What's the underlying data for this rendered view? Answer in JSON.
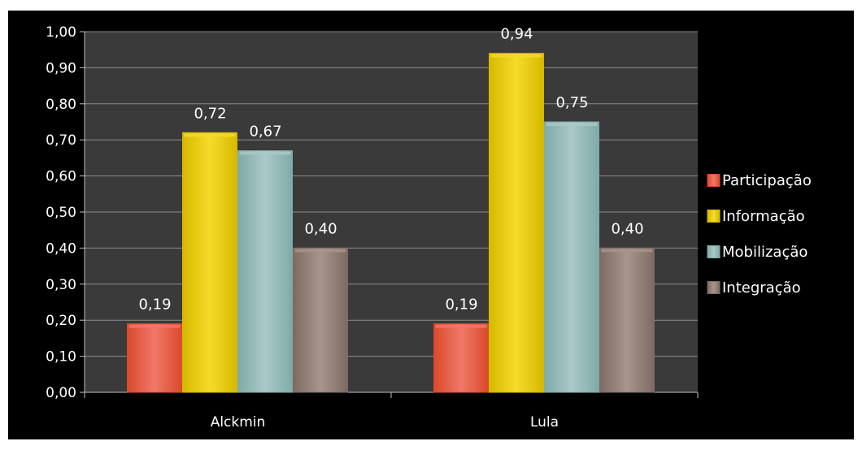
{
  "chart_data": {
    "type": "bar",
    "categories": [
      "Alckmin",
      "Lula"
    ],
    "series": [
      {
        "name": "Participação",
        "values": [
          0.19,
          0.19
        ],
        "color": "#d94a2b",
        "color_light": "#f0786a"
      },
      {
        "name": "Informação",
        "values": [
          0.72,
          0.94
        ],
        "color": "#d6b800",
        "color_light": "#f5dc2a"
      },
      {
        "name": "Mobilização",
        "values": [
          0.67,
          0.75
        ],
        "color": "#7faaa8",
        "color_light": "#aac9c7"
      },
      {
        "name": "Integração",
        "values": [
          0.4,
          0.4
        ],
        "color": "#7d6a62",
        "color_light": "#a8958c"
      }
    ],
    "ylim": [
      0,
      1
    ],
    "yticks": [
      "0,00",
      "0,10",
      "0,20",
      "0,30",
      "0,40",
      "0,50",
      "0,60",
      "0,70",
      "0,80",
      "0,90",
      "1,00"
    ],
    "data_labels": [
      [
        "0,19",
        "0,19"
      ],
      [
        "0,72",
        "0,94"
      ],
      [
        "0,67",
        "0,75"
      ],
      [
        "0,40",
        "0,40"
      ]
    ],
    "grid": true,
    "legend": "right",
    "plot_background": "#3a3a3a",
    "page_background": "#000000"
  }
}
